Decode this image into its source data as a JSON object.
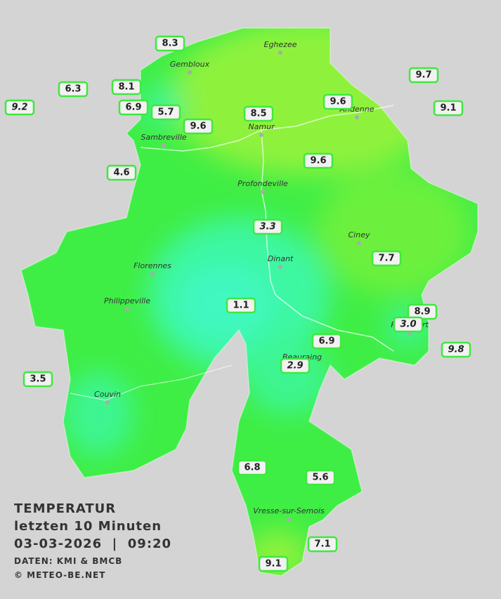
{
  "legend": {
    "title": "TEMPERATUR",
    "period": "letzten 10 Minuten",
    "datetime": "03-03-2026  |  09:20",
    "source": "DATEN: KMI & BMCB",
    "copyright": "© METEO-BE.NET"
  },
  "cities": [
    "Eghezee",
    "Gembloux",
    "Andenne",
    "Namur",
    "Sambreville",
    "Profondeville",
    "Ciney",
    "Dinant",
    "Florennes",
    "Philippeville",
    "Rochefort",
    "Beauraing",
    "Couvin",
    "Vresse-sur-Semois"
  ],
  "stations": [
    {
      "value": "8.3"
    },
    {
      "value": "6.3"
    },
    {
      "value": "9.2",
      "italic": true
    },
    {
      "value": "8.1"
    },
    {
      "value": "6.9"
    },
    {
      "value": "5.7"
    },
    {
      "value": "9.6"
    },
    {
      "value": "8.5"
    },
    {
      "value": "9.6"
    },
    {
      "value": "9.7"
    },
    {
      "value": "9.1"
    },
    {
      "value": "9.6"
    },
    {
      "value": "4.6"
    },
    {
      "value": "3.3",
      "italic": true
    },
    {
      "value": "7.7"
    },
    {
      "value": "1.1"
    },
    {
      "value": "8.9"
    },
    {
      "value": "3.0",
      "italic": true
    },
    {
      "value": "9.8",
      "italic": true
    },
    {
      "value": "6.9"
    },
    {
      "value": "2.9",
      "italic": true
    },
    {
      "value": "3.5"
    },
    {
      "value": "6.8"
    },
    {
      "value": "5.6"
    },
    {
      "value": "7.1"
    },
    {
      "value": "9.1"
    }
  ]
}
